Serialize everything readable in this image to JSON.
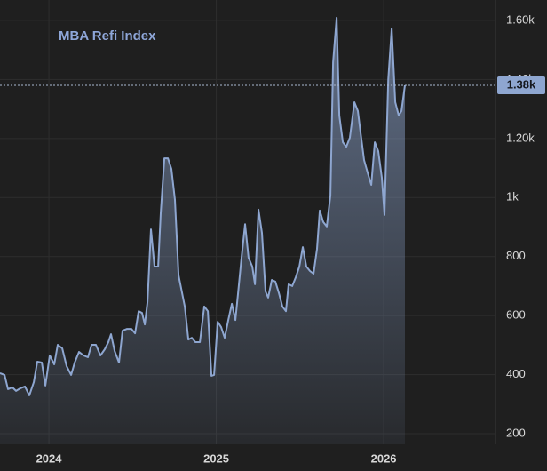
{
  "chart_data": {
    "type": "area",
    "title": "MBA Refi Index",
    "series": [
      {
        "name": "MBA Refi Index",
        "color": "#8ea6d0",
        "x": [
          2023.708,
          2023.735,
          2023.756,
          2023.782,
          2023.804,
          2023.83,
          2023.857,
          2023.883,
          2023.91,
          2023.931,
          2023.958,
          2023.979,
          2024.005,
          2024.032,
          2024.053,
          2024.08,
          2024.106,
          2024.133,
          2024.154,
          2024.18,
          2024.207,
          2024.233,
          2024.255,
          2024.281,
          2024.308,
          2024.334,
          2024.355,
          2024.371,
          2024.393,
          2024.419,
          2024.44,
          2024.467,
          2024.493,
          2024.515,
          2024.536,
          2024.557,
          2024.573,
          2024.589,
          2024.61,
          2024.631,
          2024.653,
          2024.668,
          2024.69,
          2024.711,
          2024.732,
          2024.753,
          2024.775,
          2024.796,
          2024.812,
          2024.833,
          2024.854,
          2024.875,
          2024.902,
          2024.928,
          2024.95,
          2024.971,
          2024.987,
          2025.008,
          2025.029,
          2025.05,
          2025.072,
          2025.093,
          2025.114,
          2025.13,
          2025.151,
          2025.172,
          2025.193,
          2025.215,
          2025.231,
          2025.252,
          2025.273,
          2025.294,
          2025.31,
          2025.332,
          2025.353,
          2025.374,
          2025.395,
          2025.416,
          2025.432,
          2025.454,
          2025.475,
          2025.496,
          2025.517,
          2025.538,
          2025.56,
          2025.581,
          2025.602,
          2025.618,
          2025.639,
          2025.66,
          2025.682,
          2025.698,
          2025.719,
          2025.735,
          2025.756,
          2025.777,
          2025.798,
          2025.825,
          2025.846,
          2025.862,
          2025.883,
          2025.905,
          2025.926,
          2025.947,
          2025.968,
          2025.989,
          2026.005,
          2026.027,
          2026.048,
          2026.069,
          2026.09,
          2026.106,
          2026.127
        ],
        "values": [
          405,
          399,
          351,
          357,
          345,
          354,
          360,
          330,
          375,
          444,
          441,
          363,
          465,
          435,
          501,
          489,
          429,
          399,
          441,
          477,
          465,
          459,
          501,
          501,
          465,
          486,
          510,
          537,
          480,
          441,
          549,
          555,
          555,
          540,
          615,
          609,
          570,
          646,
          892,
          766,
          766,
          947,
          1133,
          1133,
          1097,
          992,
          736,
          676,
          631,
          519,
          525,
          510,
          510,
          631,
          615,
          396,
          399,
          579,
          561,
          525,
          585,
          640,
          585,
          676,
          796,
          910,
          796,
          766,
          706,
          959,
          880,
          682,
          661,
          721,
          715,
          676,
          631,
          615,
          706,
          700,
          730,
          766,
          832,
          766,
          751,
          742,
          826,
          956,
          917,
          902,
          1007,
          1458,
          1609,
          1278,
          1187,
          1172,
          1203,
          1323,
          1293,
          1218,
          1127,
          1082,
          1043,
          1187,
          1157,
          1067,
          941,
          1398,
          1573,
          1323,
          1278,
          1293,
          1380
        ],
        "last_value_label": "1.38k"
      }
    ],
    "xlim": [
      2023.708,
      2026.668
    ],
    "xticks": [
      2024,
      2025,
      2026
    ],
    "ylim": [
      164,
      1669
    ],
    "yticks": [
      {
        "value": 1600,
        "label": "1.60k"
      },
      {
        "value": 1400,
        "label": "1.40k"
      },
      {
        "value": 1200,
        "label": "1.20k"
      },
      {
        "value": 1000,
        "label": "1k"
      },
      800,
      600,
      400,
      200
    ],
    "grid": true
  }
}
